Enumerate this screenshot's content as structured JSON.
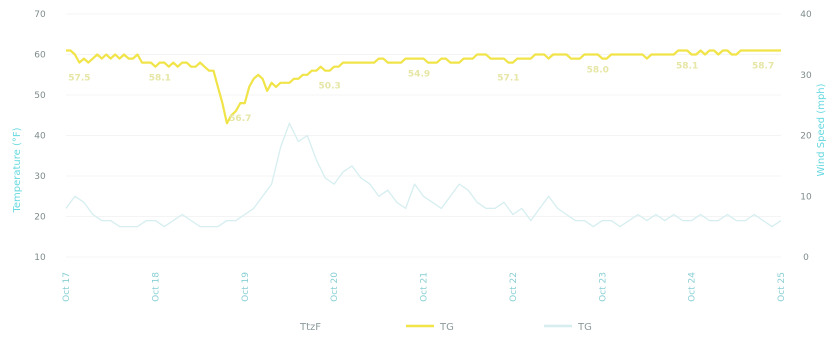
{
  "chart_data": {
    "type": "line",
    "x_categories": [
      "Oct 17",
      "Oct 18",
      "Oct 19",
      "Oct 20",
      "Oct 21",
      "Oct 22",
      "Oct 23",
      "Oct 24",
      "Oct 25"
    ],
    "left_axis": {
      "label": "Temperature (°F)",
      "ylim": [
        10,
        70
      ],
      "ticks": [
        10,
        20,
        30,
        40,
        50,
        60,
        70
      ]
    },
    "right_axis": {
      "label": "Wind Speed (mph)",
      "ylim": [
        0,
        40
      ],
      "ticks": [
        0,
        10,
        20,
        30,
        40
      ]
    },
    "legend": [
      "TtzF",
      "TG",
      "TG"
    ],
    "legend_colors": [
      "#cfe3e5",
      "#f0e449",
      "#d6eef0"
    ],
    "series": [
      {
        "name": "TG",
        "axis": "left",
        "color": "#f0e449",
        "x": [
          0,
          0.05,
          0.1,
          0.15,
          0.2,
          0.25,
          0.3,
          0.35,
          0.4,
          0.45,
          0.5,
          0.55,
          0.6,
          0.65,
          0.7,
          0.75,
          0.8,
          0.85,
          0.9,
          0.95,
          1,
          1.05,
          1.1,
          1.15,
          1.2,
          1.25,
          1.3,
          1.35,
          1.4,
          1.45,
          1.5,
          1.55,
          1.6,
          1.65,
          1.7,
          1.75,
          1.8,
          1.85,
          1.9,
          1.95,
          2,
          2.05,
          2.1,
          2.15,
          2.2,
          2.25,
          2.3,
          2.35,
          2.4,
          2.45,
          2.5,
          2.55,
          2.6,
          2.65,
          2.7,
          2.75,
          2.8,
          2.85,
          2.9,
          2.95,
          3,
          3.05,
          3.1,
          3.15,
          3.2,
          3.25,
          3.3,
          3.35,
          3.4,
          3.45,
          3.5,
          3.55,
          3.6,
          3.65,
          3.7,
          3.75,
          3.8,
          3.85,
          3.9,
          3.95,
          4,
          4.05,
          4.1,
          4.15,
          4.2,
          4.25,
          4.3,
          4.35,
          4.4,
          4.45,
          4.5,
          4.55,
          4.6,
          4.65,
          4.7,
          4.75,
          4.8,
          4.85,
          4.9,
          4.95,
          5,
          5.05,
          5.1,
          5.15,
          5.2,
          5.25,
          5.3,
          5.35,
          5.4,
          5.45,
          5.5,
          5.55,
          5.6,
          5.65,
          5.7,
          5.75,
          5.8,
          5.85,
          5.9,
          5.95,
          6,
          6.05,
          6.1,
          6.15,
          6.2,
          6.25,
          6.3,
          6.35,
          6.4,
          6.45,
          6.5,
          6.55,
          6.6,
          6.65,
          6.7,
          6.75,
          6.8,
          6.85,
          6.9,
          6.95,
          7,
          7.05,
          7.1,
          7.15,
          7.2,
          7.25,
          7.3,
          7.35,
          7.4,
          7.45,
          7.5,
          7.55,
          7.6,
          7.65,
          7.7,
          7.75,
          7.8,
          7.85,
          7.9,
          7.95,
          8
        ],
        "values": [
          61,
          61,
          60,
          58,
          59,
          58,
          59,
          60,
          59,
          60,
          59,
          60,
          59,
          60,
          59,
          59,
          60,
          58,
          58,
          58,
          57,
          58,
          58,
          57,
          58,
          57,
          58,
          58,
          57,
          57,
          58,
          57,
          56,
          56,
          52,
          48,
          43,
          45,
          46,
          48,
          48,
          52,
          54,
          55,
          54,
          51,
          53,
          52,
          53,
          53,
          53,
          54,
          54,
          55,
          55,
          56,
          56,
          57,
          56,
          56,
          57,
          57,
          58,
          58,
          58,
          58,
          58,
          58,
          58,
          58,
          59,
          59,
          58,
          58,
          58,
          58,
          59,
          59,
          59,
          59,
          59,
          58,
          58,
          58,
          59,
          59,
          58,
          58,
          58,
          59,
          59,
          59,
          60,
          60,
          60,
          59,
          59,
          59,
          59,
          58,
          58,
          59,
          59,
          59,
          59,
          60,
          60,
          60,
          59,
          60,
          60,
          60,
          60,
          59,
          59,
          59,
          60,
          60,
          60,
          60,
          59,
          59,
          60,
          60,
          60,
          60,
          60,
          60,
          60,
          60,
          59,
          60,
          60,
          60,
          60,
          60,
          60,
          61,
          61,
          61,
          60,
          60,
          61,
          60,
          61,
          61,
          60,
          61,
          61,
          60,
          60,
          61,
          61,
          61,
          61,
          61,
          61,
          61,
          61,
          61,
          61
        ],
        "data_labels": [
          {
            "x": 0.15,
            "text": "57.5"
          },
          {
            "x": 1.05,
            "text": "58.1"
          },
          {
            "x": 1.95,
            "text": "56.7"
          },
          {
            "x": 2.95,
            "text": "50.3"
          },
          {
            "x": 3.95,
            "text": "54.9"
          },
          {
            "x": 4.95,
            "text": "57.1"
          },
          {
            "x": 5.95,
            "text": "58.0"
          },
          {
            "x": 6.95,
            "text": "58.1"
          },
          {
            "x": 7.8,
            "text": "58.7"
          }
        ]
      },
      {
        "name": "TG",
        "axis": "right",
        "color": "#d6eef0",
        "x": [
          0,
          0.1,
          0.2,
          0.3,
          0.4,
          0.5,
          0.6,
          0.7,
          0.8,
          0.9,
          1,
          1.1,
          1.2,
          1.3,
          1.4,
          1.5,
          1.6,
          1.7,
          1.8,
          1.9,
          2,
          2.1,
          2.2,
          2.3,
          2.4,
          2.5,
          2.6,
          2.7,
          2.8,
          2.9,
          3,
          3.1,
          3.2,
          3.3,
          3.4,
          3.5,
          3.6,
          3.7,
          3.8,
          3.9,
          4,
          4.1,
          4.2,
          4.3,
          4.4,
          4.5,
          4.6,
          4.7,
          4.8,
          4.9,
          5,
          5.1,
          5.2,
          5.3,
          5.4,
          5.5,
          5.6,
          5.7,
          5.8,
          5.9,
          6,
          6.1,
          6.2,
          6.3,
          6.4,
          6.5,
          6.6,
          6.7,
          6.8,
          6.9,
          7,
          7.1,
          7.2,
          7.3,
          7.4,
          7.5,
          7.6,
          7.7,
          7.8,
          7.9,
          8
        ],
        "values": [
          8,
          10,
          9,
          7,
          6,
          6,
          5,
          5,
          5,
          6,
          6,
          5,
          6,
          7,
          6,
          5,
          5,
          5,
          6,
          6,
          7,
          8,
          10,
          12,
          18,
          22,
          19,
          20,
          16,
          13,
          12,
          14,
          15,
          13,
          12,
          10,
          11,
          9,
          8,
          12,
          10,
          9,
          8,
          10,
          12,
          11,
          9,
          8,
          8,
          9,
          7,
          8,
          6,
          8,
          10,
          8,
          7,
          6,
          6,
          5,
          6,
          6,
          5,
          6,
          7,
          6,
          7,
          6,
          7,
          6,
          6,
          7,
          6,
          6,
          7,
          6,
          6,
          7,
          6,
          5,
          6
        ]
      }
    ]
  }
}
